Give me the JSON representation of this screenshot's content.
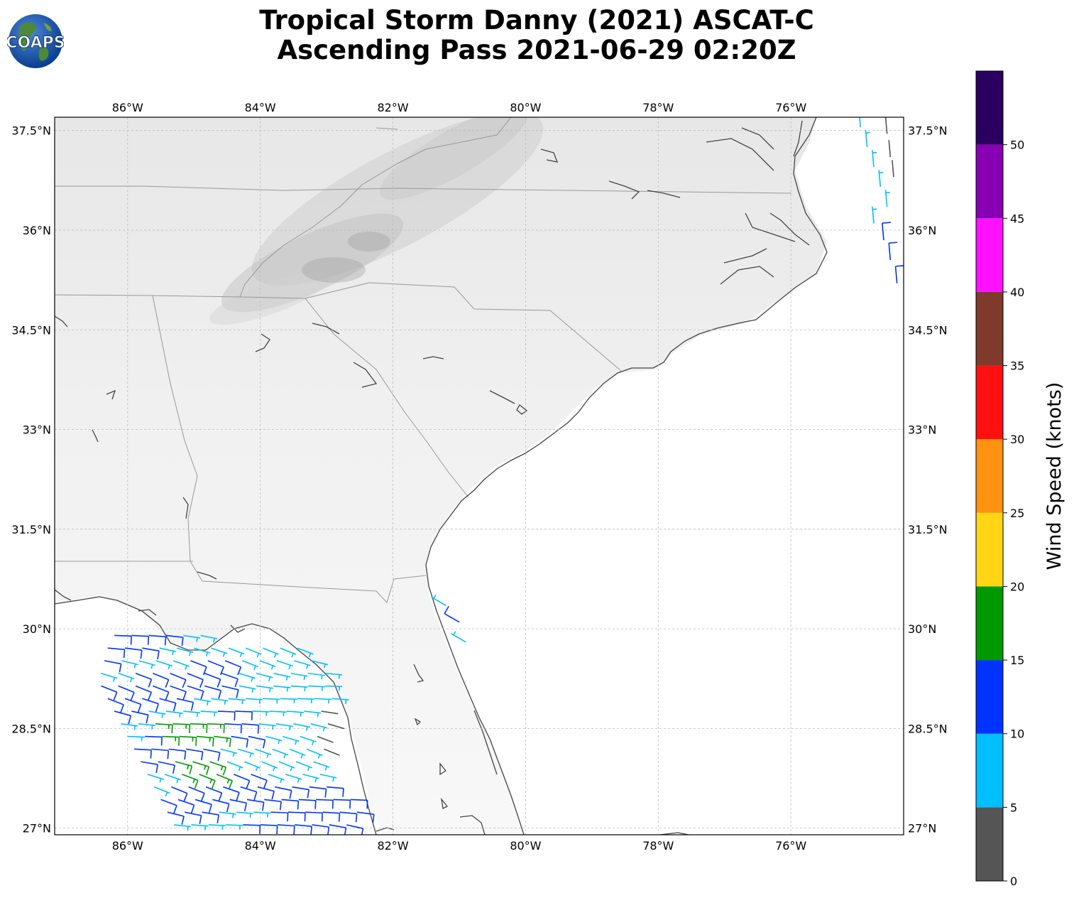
{
  "title": {
    "line1": "Tropical Storm Danny (2021) ASCAT-C",
    "line2": "Ascending Pass 2021-06-29 02:20Z"
  },
  "logo": {
    "text": "COAPS",
    "icon": "globe-logo-icon"
  },
  "map": {
    "lon_range": [
      -87.1,
      -74.3
    ],
    "lat_range": [
      26.9,
      37.7
    ],
    "lon_ticks": [
      {
        "value": -86,
        "label": "86°W"
      },
      {
        "value": -84,
        "label": "84°W"
      },
      {
        "value": -82,
        "label": "82°W"
      },
      {
        "value": -80,
        "label": "80°W"
      },
      {
        "value": -78,
        "label": "78°W"
      },
      {
        "value": -76,
        "label": "76°W"
      }
    ],
    "lat_ticks": [
      {
        "value": 37.5,
        "label": "37.5°N"
      },
      {
        "value": 36,
        "label": "36°N"
      },
      {
        "value": 34.5,
        "label": "34.5°N"
      },
      {
        "value": 33,
        "label": "33°N"
      },
      {
        "value": 31.5,
        "label": "31.5°N"
      },
      {
        "value": 30,
        "label": "30°N"
      },
      {
        "value": 28.5,
        "label": "28.5°N"
      },
      {
        "value": 27,
        "label": "27°N"
      }
    ],
    "grid": true,
    "coastline_color": "#444444",
    "border_color": "#999999"
  },
  "colorbar": {
    "label": "Wind Speed (knots)",
    "bins": [
      {
        "min": 0,
        "max": 5,
        "color": "#555555"
      },
      {
        "min": 5,
        "max": 10,
        "color": "#00bfff"
      },
      {
        "min": 10,
        "max": 15,
        "color": "#0033ff"
      },
      {
        "min": 15,
        "max": 20,
        "color": "#009900"
      },
      {
        "min": 20,
        "max": 25,
        "color": "#ffd514"
      },
      {
        "min": 25,
        "max": 30,
        "color": "#ff9210"
      },
      {
        "min": 30,
        "max": 35,
        "color": "#ff1010"
      },
      {
        "min": 35,
        "max": 40,
        "color": "#7e3a2a"
      },
      {
        "min": 40,
        "max": 45,
        "color": "#ff10ff"
      },
      {
        "min": 45,
        "max": 50,
        "color": "#8800b3"
      },
      {
        "min": 50,
        "max": 55,
        "color": "#2a0060"
      }
    ],
    "ticks": [
      "0",
      "5",
      "10",
      "15",
      "20",
      "25",
      "30",
      "35",
      "40",
      "45",
      "50"
    ]
  },
  "wind_barbs": {
    "east_swath": [
      {
        "lon": -74.95,
        "lat": 37.55,
        "speed": 7
      },
      {
        "lon": -74.85,
        "lat": 37.25,
        "speed": 8
      },
      {
        "lon": -74.75,
        "lat": 36.95,
        "speed": 7
      },
      {
        "lon": -74.65,
        "lat": 36.65,
        "speed": 8
      },
      {
        "lon": -74.55,
        "lat": 36.35,
        "speed": 7
      },
      {
        "lon": -74.75,
        "lat": 36.1,
        "speed": 8
      },
      {
        "lon": -74.6,
        "lat": 35.85,
        "speed": 11
      },
      {
        "lon": -74.5,
        "lat": 35.55,
        "speed": 12
      },
      {
        "lon": -74.4,
        "lat": 35.2,
        "speed": 13
      },
      {
        "lon": -74.55,
        "lat": 37.45,
        "speed": 3
      },
      {
        "lon": -74.5,
        "lat": 37.1,
        "speed": 4
      },
      {
        "lon": -74.45,
        "lat": 36.8,
        "speed": 3
      }
    ],
    "atlantic_fl": [
      {
        "lon": -81.2,
        "lat": 30.35,
        "speed": 8
      },
      {
        "lon": -81.0,
        "lat": 30.1,
        "speed": 12
      },
      {
        "lon": -80.9,
        "lat": 29.8,
        "speed": 7
      }
    ],
    "gulf_grid": {
      "lat_start": 26.95,
      "lat_end": 29.9,
      "lat_step": 0.19,
      "lon_step": 0.26,
      "rows_lon": [
        [
          -86.2,
          -84.8
        ],
        [
          -86.3,
          -83.4
        ],
        [
          -86.35,
          -83.2
        ],
        [
          -86.4,
          -83.0
        ],
        [
          -86.4,
          -82.9
        ],
        [
          -86.3,
          -82.8
        ],
        [
          -86.2,
          -82.85
        ],
        [
          -86.1,
          -82.8
        ],
        [
          -86.0,
          -82.9
        ],
        [
          -85.9,
          -83.0
        ],
        [
          -85.8,
          -83.0
        ],
        [
          -85.7,
          -83.0
        ],
        [
          -85.6,
          -82.8
        ],
        [
          -85.5,
          -82.6
        ],
        [
          -85.4,
          -82.5
        ],
        [
          -85.3,
          -82.5
        ]
      ]
    }
  }
}
